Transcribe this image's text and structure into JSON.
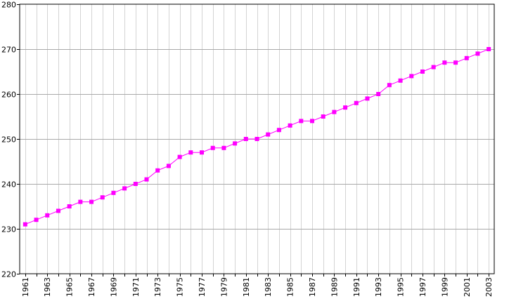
{
  "chart_data": {
    "type": "line",
    "title": "",
    "xlabel": "",
    "ylabel": "",
    "x": [
      1961,
      1962,
      1963,
      1964,
      1965,
      1966,
      1967,
      1968,
      1969,
      1970,
      1971,
      1972,
      1973,
      1974,
      1975,
      1976,
      1977,
      1978,
      1979,
      1980,
      1981,
      1982,
      1983,
      1984,
      1985,
      1986,
      1987,
      1988,
      1989,
      1990,
      1991,
      1992,
      1993,
      1994,
      1995,
      1996,
      1997,
      1998,
      1999,
      2000,
      2001,
      2002,
      2003
    ],
    "series": [
      {
        "values": [
          231,
          232,
          233,
          234,
          235,
          236,
          236,
          237,
          238,
          239,
          240,
          241,
          243,
          244,
          246,
          247,
          247,
          248,
          248,
          249,
          250,
          250,
          251,
          252,
          253,
          254,
          254,
          255,
          256,
          257,
          258,
          259,
          260,
          262,
          263,
          264,
          265,
          266,
          267,
          267,
          268,
          269,
          270
        ],
        "color": "#ff00ff",
        "marker": "square"
      }
    ],
    "xlim": [
      1960.5,
      2003.5
    ],
    "ylim": [
      220,
      280
    ],
    "yticks": [
      220,
      230,
      240,
      250,
      260,
      270,
      280
    ],
    "xticks": [
      1961,
      1963,
      1965,
      1967,
      1969,
      1971,
      1973,
      1975,
      1977,
      1979,
      1981,
      1983,
      1985,
      1987,
      1989,
      1991,
      1993,
      1995,
      1997,
      1999,
      2001,
      2003
    ],
    "xtick_rotation": "vertical",
    "grid": true
  }
}
